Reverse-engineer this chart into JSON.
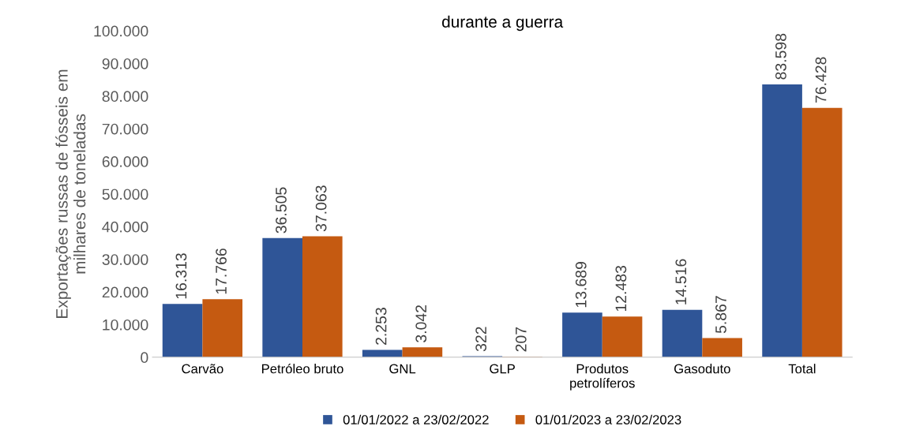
{
  "chart_data": {
    "type": "bar",
    "title": "durante a guerra",
    "ylabel": "Exportações russas de fósseis em\nmilhares de toneladas",
    "categories": [
      "Carvão",
      "Petróleo bruto",
      "GNL",
      "GLP",
      "Produtos\npetrolíferos",
      "Gasoduto",
      "Total"
    ],
    "series": [
      {
        "name": "01/01/2022 a 23/02/2022",
        "color": "#2f5597",
        "values": [
          16313,
          36505,
          2253,
          322,
          13689,
          14516,
          83598
        ],
        "value_labels": [
          "16.313",
          "36.505",
          "2.253",
          "322",
          "13.689",
          "14.516",
          "83.598"
        ]
      },
      {
        "name": "01/01/2023 a 23/02/2023",
        "color": "#c55a11",
        "values": [
          17766,
          37063,
          3042,
          207,
          12483,
          5867,
          76428
        ],
        "value_labels": [
          "17.766",
          "37.063",
          "3.042",
          "207",
          "12.483",
          "5.867",
          "76.428"
        ]
      }
    ],
    "ylim": [
      0,
      100000
    ],
    "yticks": [
      0,
      {
        "value": 10000,
        "label": "10.000"
      },
      {
        "value": 20000,
        "label": "20.000"
      },
      {
        "value": 30000,
        "label": "30.000"
      },
      {
        "value": 40000,
        "label": "40.000"
      },
      {
        "value": 50000,
        "label": "50.000"
      },
      {
        "value": 60000,
        "label": "60.000"
      },
      {
        "value": 70000,
        "label": "70.000"
      },
      {
        "value": 80000,
        "label": "80.000"
      },
      {
        "value": 90000,
        "label": "90.000"
      },
      {
        "value": 100000,
        "label": "100.000"
      }
    ],
    "grid": false,
    "legend": "bottom"
  }
}
